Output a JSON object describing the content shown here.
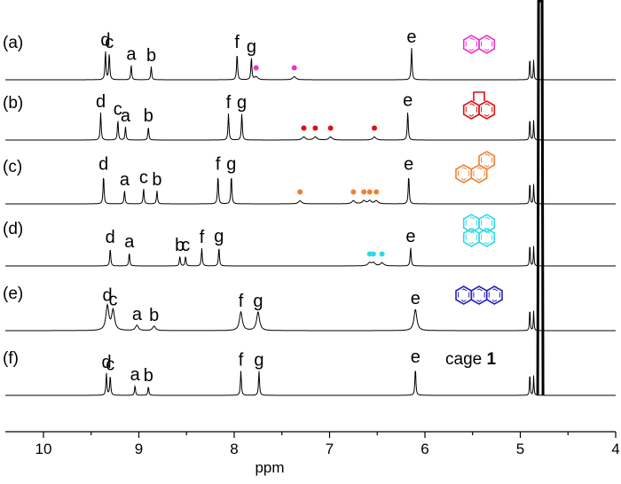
{
  "chart_data": {
    "type": "line",
    "xlabel": "ppm",
    "xlim": [
      10.4,
      4.0
    ],
    "x_reversed": true,
    "x_ticks": [
      {
        "value": 10,
        "label": "10"
      },
      {
        "value": 9,
        "label": "9"
      },
      {
        "value": 8,
        "label": "8"
      },
      {
        "value": 7,
        "label": "7"
      },
      {
        "value": 6,
        "label": "6"
      },
      {
        "value": 5,
        "label": "5"
      },
      {
        "value": 4,
        "label": "4"
      }
    ],
    "solvent_peak_ppm": 4.79,
    "series": [
      {
        "panel": "(a)",
        "guest_color": "#ee33cc",
        "guest_icon": "naphthalene-icon",
        "peaks": [
          {
            "label": "d",
            "ppm": 9.35,
            "height": 0.65
          },
          {
            "label": "c",
            "ppm": 9.31,
            "height": 0.6
          },
          {
            "label": "a",
            "ppm": 9.08,
            "height": 0.33
          },
          {
            "label": "b",
            "ppm": 8.87,
            "height": 0.3
          },
          {
            "label": "f",
            "ppm": 7.97,
            "height": 0.6
          },
          {
            "label": "g",
            "ppm": 7.82,
            "height": 0.5
          },
          {
            "label": "e",
            "ppm": 6.14,
            "height": 0.72
          }
        ],
        "guest_peaks": [
          7.77,
          7.37
        ]
      },
      {
        "panel": "(b)",
        "guest_color": "#dd1111",
        "guest_icon": "acenaphthylene-icon",
        "peaks": [
          {
            "label": "d",
            "ppm": 9.4,
            "height": 0.62
          },
          {
            "label": "c",
            "ppm": 9.22,
            "height": 0.45
          },
          {
            "label": "a",
            "ppm": 9.14,
            "height": 0.3
          },
          {
            "label": "b",
            "ppm": 8.9,
            "height": 0.3
          },
          {
            "label": "f",
            "ppm": 8.06,
            "height": 0.6
          },
          {
            "label": "g",
            "ppm": 7.92,
            "height": 0.6
          },
          {
            "label": "e",
            "ppm": 6.18,
            "height": 0.65
          }
        ],
        "guest_peaks": [
          7.27,
          7.15,
          6.99,
          6.53
        ]
      },
      {
        "panel": "(c)",
        "guest_color": "#f08030",
        "guest_icon": "phenanthrene-icon",
        "peaks": [
          {
            "label": "d",
            "ppm": 9.37,
            "height": 0.65
          },
          {
            "label": "a",
            "ppm": 9.15,
            "height": 0.3
          },
          {
            "label": "c",
            "ppm": 8.95,
            "height": 0.35
          },
          {
            "label": "b",
            "ppm": 8.81,
            "height": 0.3
          },
          {
            "label": "f",
            "ppm": 8.17,
            "height": 0.65
          },
          {
            "label": "g",
            "ppm": 8.03,
            "height": 0.65
          },
          {
            "label": "e",
            "ppm": 6.17,
            "height": 0.65
          }
        ],
        "guest_peaks": [
          7.31,
          6.75,
          6.64,
          6.58,
          6.51
        ]
      },
      {
        "panel": "(d)",
        "guest_color": "#33d8e8",
        "guest_icon": "pyrene-icon",
        "peaks": [
          {
            "label": "d",
            "ppm": 9.3,
            "height": 0.4
          },
          {
            "label": "a",
            "ppm": 9.1,
            "height": 0.3
          },
          {
            "label": "b",
            "ppm": 8.57,
            "height": 0.22
          },
          {
            "label": "c",
            "ppm": 8.51,
            "height": 0.22
          },
          {
            "label": "f",
            "ppm": 8.34,
            "height": 0.4
          },
          {
            "label": "g",
            "ppm": 8.16,
            "height": 0.42
          },
          {
            "label": "e",
            "ppm": 6.15,
            "height": 0.42
          }
        ],
        "guest_peaks": [
          6.58,
          6.54,
          6.45
        ]
      },
      {
        "panel": "(e)",
        "guest_color": "#2222bb",
        "guest_icon": "anthracene-icon",
        "peaks": [
          {
            "label": "d",
            "ppm": 9.33,
            "height": 0.55
          },
          {
            "label": "c",
            "ppm": 9.27,
            "height": 0.45
          },
          {
            "label": "a",
            "ppm": 9.02,
            "height": 0.12
          },
          {
            "label": "b",
            "ppm": 8.84,
            "height": 0.1
          },
          {
            "label": "f",
            "ppm": 7.93,
            "height": 0.42
          },
          {
            "label": "g",
            "ppm": 7.75,
            "height": 0.42
          },
          {
            "label": "e",
            "ppm": 6.1,
            "height": 0.48
          }
        ],
        "guest_peaks": []
      },
      {
        "panel": "(f)",
        "guest_text": "cage ",
        "guest_text_bold": "1",
        "peaks": [
          {
            "label": "d",
            "ppm": 9.34,
            "height": 0.5
          },
          {
            "label": "c",
            "ppm": 9.3,
            "height": 0.45
          },
          {
            "label": "a",
            "ppm": 9.04,
            "height": 0.22
          },
          {
            "label": "b",
            "ppm": 8.9,
            "height": 0.2
          },
          {
            "label": "f",
            "ppm": 7.93,
            "height": 0.55
          },
          {
            "label": "g",
            "ppm": 7.74,
            "height": 0.55
          },
          {
            "label": "e",
            "ppm": 6.1,
            "height": 0.62
          }
        ],
        "guest_peaks": []
      }
    ]
  }
}
